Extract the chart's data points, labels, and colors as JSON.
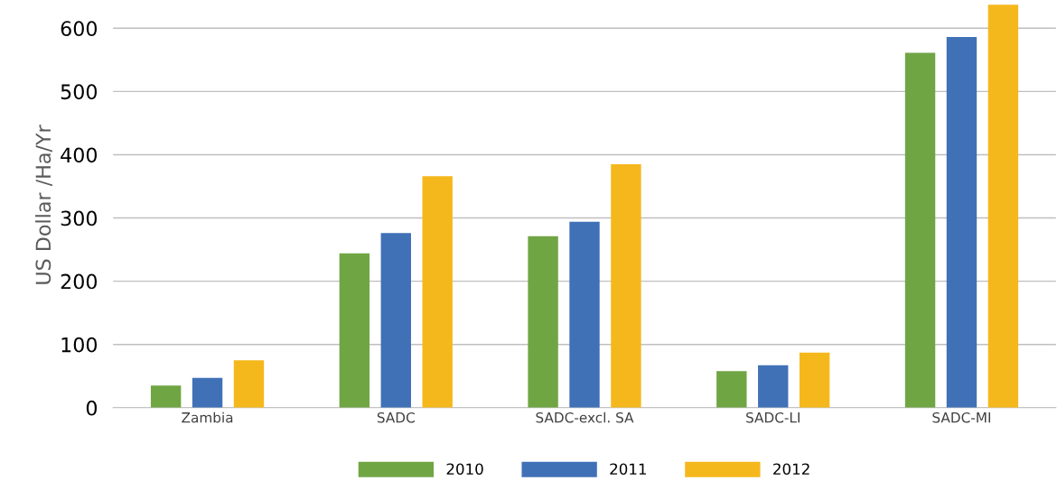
{
  "chart_data": {
    "type": "bar",
    "ylabel": "US Dollar /Ha/Yr",
    "categories": [
      "Zambia",
      "SADC",
      "SADC-excl. SA",
      "SADC-LI",
      "SADC-MI"
    ],
    "series": [
      {
        "name": "2010",
        "color": "#70a544",
        "values": [
          35,
          244,
          271,
          58,
          561
        ]
      },
      {
        "name": "2011",
        "color": "#4071b7",
        "values": [
          47,
          276,
          294,
          67,
          586
        ]
      },
      {
        "name": "2012",
        "color": "#f5b81c",
        "values": [
          75,
          366,
          385,
          87,
          637
        ]
      }
    ],
    "ylim": [
      0,
      640
    ],
    "yticks": [
      0,
      100,
      200,
      300,
      400,
      500,
      600
    ],
    "grid": "y",
    "legend": "bottom"
  }
}
